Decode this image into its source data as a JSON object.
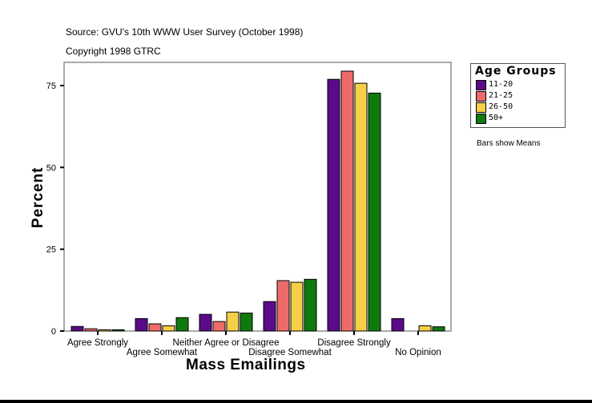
{
  "chart_data": {
    "type": "bar",
    "title": "Source: GVU's 10th WWW User Survey (October 1998)",
    "subtitle": "Copyright 1998 GTRC",
    "xlabel": "Mass Emailings",
    "ylabel": "Percent",
    "ylim": [
      0,
      82
    ],
    "yticks": [
      0,
      25,
      50,
      75
    ],
    "categories": [
      "Agree Strongly",
      "Agree Somewhat",
      "Neither Agree or Disagree",
      "Disagree Somewhat",
      "Disagree Strongly",
      "No Opinion"
    ],
    "legend_title": "Age Groups",
    "legend_position": "right",
    "note": "Bars show Means",
    "grid": false,
    "series": [
      {
        "name": "11-20",
        "color": "#5c0a8a",
        "values": [
          1.4,
          3.8,
          5.1,
          9.0,
          76.9,
          3.8
        ]
      },
      {
        "name": "21-25",
        "color": "#ee6b6b",
        "values": [
          0.7,
          2.2,
          2.9,
          15.4,
          79.4,
          0
        ]
      },
      {
        "name": "26-50",
        "color": "#f5cf48",
        "values": [
          0.4,
          1.6,
          5.8,
          14.9,
          75.7,
          1.6
        ]
      },
      {
        "name": "50+",
        "color": "#0e7a0e",
        "values": [
          0.4,
          4.1,
          5.5,
          15.8,
          72.7,
          1.3
        ]
      }
    ]
  }
}
